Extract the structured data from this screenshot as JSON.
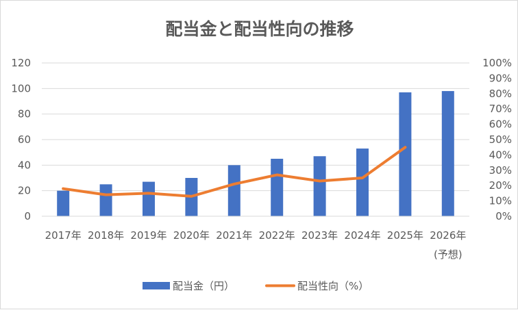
{
  "chart_data": {
    "type": "bar",
    "title": "配当金と配当性向の推移",
    "categories": [
      [
        "2017年"
      ],
      [
        "2018年"
      ],
      [
        "2019年"
      ],
      [
        "2020年"
      ],
      [
        "2021年"
      ],
      [
        "2022年"
      ],
      [
        "2023年"
      ],
      [
        "2024年"
      ],
      [
        "2025年"
      ],
      [
        "2026年",
        "(予想)"
      ]
    ],
    "series": [
      {
        "name": "配当金（円）",
        "type": "bar",
        "axis": "left",
        "color": "#4472c4",
        "values": [
          20,
          25,
          27,
          30,
          40,
          45,
          47,
          53,
          97,
          98
        ]
      },
      {
        "name": "配当性向（%）",
        "type": "line",
        "axis": "right",
        "color": "#ed7d31",
        "values": [
          18,
          14,
          15,
          13,
          21,
          27,
          23,
          25,
          45,
          null
        ]
      }
    ],
    "y_left": {
      "ticks": [
        "0",
        "20",
        "40",
        "60",
        "80",
        "100",
        "120"
      ],
      "range": [
        0,
        120
      ]
    },
    "y_right": {
      "ticks": [
        "0%",
        "10%",
        "20%",
        "30%",
        "40%",
        "50%",
        "60%",
        "70%",
        "80%",
        "90%",
        "100%"
      ],
      "range": [
        0,
        100
      ]
    },
    "grid": true,
    "legend_position": "bottom"
  }
}
